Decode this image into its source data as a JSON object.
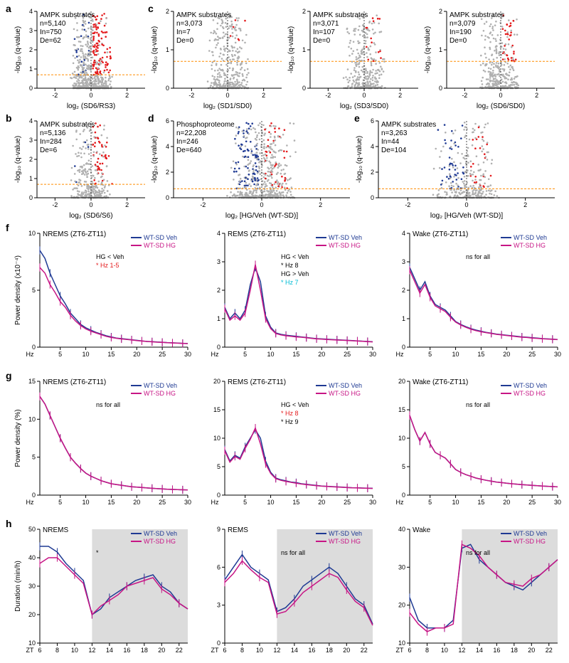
{
  "labels": {
    "a": "a",
    "b": "b",
    "c": "c",
    "d": "d",
    "e": "e",
    "f": "f",
    "g": "g",
    "h": "h"
  },
  "colors": {
    "gray": "#b0b0b0",
    "red": "#e41a1c",
    "blue": "#1f3a93",
    "black": "#000000",
    "magenta": "#c71585",
    "purple": "#9932cc",
    "threshold": "#ff8c00",
    "shade": "#dcdcdc"
  },
  "volcanoes": {
    "a": {
      "title": "AMPK substrates",
      "n": "n=5,140",
      "in": "In=750",
      "de": "De=62",
      "xlabel": "log₂ (SD6/RS3)",
      "ylabel": "-log₁₀ (q-value)",
      "xlim": [
        -3,
        3
      ],
      "ylim": [
        0,
        4
      ],
      "threshold_y": 0.7,
      "xticks": [
        -2,
        0,
        2
      ],
      "yticks": [
        0,
        1,
        2,
        3,
        4
      ]
    },
    "b": {
      "title": "AMPK substrates",
      "n": "n=5,136",
      "in": "In=284",
      "de": "De=6",
      "xlabel": "log₂ (SD6/S6)",
      "ylabel": "-log₁₀ (q-value)",
      "xlim": [
        -3,
        3
      ],
      "ylim": [
        0,
        4
      ],
      "threshold_y": 0.7,
      "xticks": [
        -2,
        0,
        2
      ],
      "yticks": [
        0,
        1,
        2,
        3,
        4
      ]
    },
    "c1": {
      "title": "AMPK substrates",
      "n": "n=3,073",
      "in": "In=7",
      "de": "De=0",
      "xlabel": "log₂ (SD1/SD0)",
      "ylabel": "-log₁₀ (q-value)",
      "xlim": [
        -3,
        3
      ],
      "ylim": [
        0,
        2
      ],
      "threshold_y": 0.7,
      "xticks": [
        -2,
        0,
        2
      ],
      "yticks": [
        0,
        1,
        2
      ]
    },
    "c2": {
      "title": "AMPK substrates",
      "n": "n=3,071",
      "in": "In=107",
      "de": "De=0",
      "xlabel": "log₂ (SD3/SD0)",
      "ylabel": "-log₁₀ (q-value)",
      "xlim": [
        -3,
        3
      ],
      "ylim": [
        0,
        2
      ],
      "threshold_y": 0.7,
      "xticks": [
        -2,
        0,
        2
      ],
      "yticks": [
        0,
        1,
        2
      ]
    },
    "c3": {
      "title": "AMPK substrates",
      "n": "n=3,079",
      "in": "In=190",
      "de": "De=0",
      "xlabel": "log₂ (SD6/SD0)",
      "ylabel": "-log₁₀ (q-value)",
      "xlim": [
        -3,
        3
      ],
      "ylim": [
        0,
        2
      ],
      "threshold_y": 0.7,
      "xticks": [
        -2,
        0,
        2
      ],
      "yticks": [
        0,
        1,
        2
      ]
    },
    "d": {
      "title": "Phosphoproteome",
      "n": "n=22,208",
      "in": "In=246",
      "de": "De=640",
      "xlabel": "log₂ [HG/Veh (WT-SD)]",
      "ylabel": "-log₁₀ (q-value)",
      "xlim": [
        -3,
        3
      ],
      "ylim": [
        0,
        6
      ],
      "threshold_y": 0.7,
      "xticks": [
        -2,
        0,
        2
      ],
      "yticks": [
        0,
        2,
        4,
        6
      ]
    },
    "e": {
      "title": "AMPK substrates",
      "n": "n=3,263",
      "in": "In=44",
      "de": "De=104",
      "xlabel": "log₂ [HG/Veh (WT-SD)]",
      "ylabel": "-log₁₀ (q-value)",
      "xlim": [
        -3,
        3
      ],
      "ylim": [
        0,
        6
      ],
      "threshold_y": 0.7,
      "xticks": [
        -2,
        0,
        2
      ],
      "yticks": [
        0,
        2,
        4,
        6
      ]
    }
  },
  "linecharts": {
    "f": {
      "ylabel": "Power density (x10⁻⁴)",
      "panels": [
        {
          "title": "NREMS (ZT6-ZT11)",
          "ylim": [
            0,
            10
          ],
          "yticks": [
            0,
            5,
            10
          ],
          "legend": [
            "WT-SD Veh",
            "WT-SD HG"
          ],
          "annot": [
            {
              "t": "HG < Veh",
              "c": "#000"
            },
            {
              "t": "* Hz 1-5",
              "c": "#e41a1c"
            }
          ]
        },
        {
          "title": "REMS (ZT6-ZT11)",
          "ylim": [
            0,
            4
          ],
          "yticks": [
            0,
            1,
            2,
            3,
            4
          ],
          "legend": [
            "WT-SD Veh",
            "WT-SD HG"
          ],
          "annot": [
            {
              "t": "HG < Veh",
              "c": "#000"
            },
            {
              "t": "* Hz 8",
              "c": "#000"
            },
            {
              "t": "HG > Veh",
              "c": "#000"
            },
            {
              "t": "* Hz 7",
              "c": "#00bcd4"
            }
          ]
        },
        {
          "title": "Wake (ZT6-ZT11)",
          "ylim": [
            0,
            4
          ],
          "yticks": [
            0,
            1,
            2,
            3,
            4
          ],
          "legend": [
            "WT-SD Veh",
            "WT-SD HG"
          ],
          "annot": [
            {
              "t": "ns for all",
              "c": "#000"
            }
          ]
        }
      ],
      "xlim": [
        1,
        30
      ],
      "xticks": [
        5,
        10,
        15,
        20,
        25,
        30
      ],
      "xlabel": "Hz"
    },
    "g": {
      "ylabel": "Power density (%)",
      "panels": [
        {
          "title": "NREMS (ZT6-ZT11)",
          "ylim": [
            0,
            15
          ],
          "yticks": [
            0,
            5,
            10,
            15
          ],
          "legend": [
            "WT-SD Veh",
            "WT-SD HG"
          ],
          "annot": [
            {
              "t": "ns for all",
              "c": "#000"
            }
          ]
        },
        {
          "title": "REMS (ZT6-ZT11)",
          "ylim": [
            0,
            20
          ],
          "yticks": [
            0,
            5,
            10,
            15,
            20
          ],
          "legend": [
            "WT-SD Veh",
            "WT-SD HG"
          ],
          "annot": [
            {
              "t": "HG < Veh",
              "c": "#000"
            },
            {
              "t": "* Hz 8",
              "c": "#e41a1c"
            },
            {
              "t": "* Hz 9",
              "c": "#000"
            }
          ]
        },
        {
          "title": "Wake (ZT6-ZT11)",
          "ylim": [
            0,
            20
          ],
          "yticks": [
            0,
            5,
            10,
            15,
            20
          ],
          "legend": [
            "WT-SD Veh",
            "WT-SD HG"
          ],
          "annot": [
            {
              "t": "ns for all",
              "c": "#000"
            }
          ]
        }
      ],
      "xlim": [
        1,
        30
      ],
      "xticks": [
        5,
        10,
        15,
        20,
        25,
        30
      ],
      "xlabel": "Hz"
    },
    "h": {
      "ylabel": "Duration (min/h)",
      "panels": [
        {
          "title": "NREMS",
          "ylim": [
            10,
            50
          ],
          "yticks": [
            10,
            20,
            30,
            40,
            50
          ],
          "legend": [
            "WT-SD Veh",
            "WT-SD HG"
          ],
          "annot": [
            {
              "t": "*",
              "c": "#000"
            }
          ],
          "shade": [
            12,
            23
          ]
        },
        {
          "title": "REMS",
          "ylim": [
            0,
            9
          ],
          "yticks": [
            0,
            3,
            6,
            9
          ],
          "legend": [
            "WT-SD Veh",
            "WT-SD HG"
          ],
          "annot": [
            {
              "t": "ns for all",
              "c": "#000"
            }
          ],
          "shade": [
            12,
            23
          ]
        },
        {
          "title": "Wake",
          "ylim": [
            10,
            40
          ],
          "yticks": [
            10,
            20,
            30,
            40
          ],
          "legend": [
            "WT-SD Veh",
            "WT-SD HG"
          ],
          "annot": [
            {
              "t": "ns for all",
              "c": "#000"
            }
          ],
          "shade": [
            12,
            23
          ]
        }
      ],
      "xlim": [
        6,
        23
      ],
      "xticks": [
        6,
        8,
        10,
        12,
        14,
        16,
        18,
        20,
        22
      ],
      "xlabel": "ZT"
    }
  },
  "line_data": {
    "f_nrems_veh": [
      8.5,
      7.8,
      6.5,
      5.5,
      4.5,
      3.8,
      3.0,
      2.5,
      2.0,
      1.7,
      1.5,
      1.3,
      1.15,
      1.0,
      0.9,
      0.8,
      0.75,
      0.7,
      0.65,
      0.6,
      0.55,
      0.5,
      0.48,
      0.45,
      0.43,
      0.4,
      0.38,
      0.36,
      0.34,
      0.32
    ],
    "f_nrems_hg": [
      7.0,
      6.5,
      5.5,
      4.8,
      4.0,
      3.5,
      2.8,
      2.3,
      1.9,
      1.6,
      1.4,
      1.25,
      1.1,
      0.95,
      0.85,
      0.78,
      0.72,
      0.68,
      0.63,
      0.58,
      0.54,
      0.5,
      0.47,
      0.44,
      0.42,
      0.39,
      0.37,
      0.35,
      0.33,
      0.31
    ],
    "f_rems_veh": [
      1.4,
      1.0,
      1.2,
      1.0,
      1.3,
      2.2,
      2.8,
      2.3,
      1.1,
      0.7,
      0.5,
      0.45,
      0.42,
      0.4,
      0.38,
      0.36,
      0.34,
      0.32,
      0.3,
      0.29,
      0.28,
      0.27,
      0.26,
      0.25,
      0.24,
      0.23,
      0.22,
      0.21,
      0.2,
      0.19
    ],
    "f_rems_hg": [
      1.35,
      0.95,
      1.1,
      0.95,
      1.2,
      2.0,
      2.9,
      2.0,
      1.0,
      0.65,
      0.48,
      0.43,
      0.4,
      0.38,
      0.36,
      0.35,
      0.33,
      0.31,
      0.29,
      0.28,
      0.27,
      0.26,
      0.25,
      0.245,
      0.235,
      0.225,
      0.215,
      0.205,
      0.195,
      0.185
    ],
    "f_wake_veh": [
      2.8,
      2.4,
      2.0,
      2.3,
      1.8,
      1.5,
      1.4,
      1.3,
      1.1,
      0.9,
      0.8,
      0.72,
      0.65,
      0.6,
      0.56,
      0.52,
      0.49,
      0.46,
      0.44,
      0.42,
      0.4,
      0.38,
      0.36,
      0.35,
      0.33,
      0.32,
      0.3,
      0.29,
      0.28,
      0.27
    ],
    "f_wake_hg": [
      2.7,
      2.3,
      1.9,
      2.2,
      1.75,
      1.45,
      1.35,
      1.25,
      1.05,
      0.88,
      0.78,
      0.7,
      0.63,
      0.58,
      0.54,
      0.51,
      0.48,
      0.45,
      0.43,
      0.41,
      0.39,
      0.37,
      0.35,
      0.34,
      0.32,
      0.31,
      0.295,
      0.285,
      0.275,
      0.265
    ],
    "g_nrems": [
      13,
      12,
      10.5,
      9,
      7.5,
      6.2,
      5,
      4.2,
      3.5,
      2.9,
      2.5,
      2.2,
      1.9,
      1.7,
      1.5,
      1.4,
      1.3,
      1.2,
      1.1,
      1.05,
      1.0,
      0.95,
      0.9,
      0.85,
      0.82,
      0.78,
      0.75,
      0.72,
      0.7,
      0.68
    ],
    "g_rems_veh": [
      8,
      6,
      7,
      6.5,
      8.5,
      10,
      11.5,
      10,
      6,
      4,
      3,
      2.7,
      2.5,
      2.3,
      2.2,
      2.0,
      1.9,
      1.8,
      1.7,
      1.6,
      1.55,
      1.5,
      1.45,
      1.4,
      1.35,
      1.3,
      1.28,
      1.25,
      1.22,
      1.2
    ],
    "g_rems_hg": [
      7.8,
      5.8,
      6.8,
      6.3,
      8.2,
      9.8,
      11.8,
      9,
      5.5,
      3.8,
      2.9,
      2.6,
      2.4,
      2.25,
      2.1,
      1.95,
      1.85,
      1.75,
      1.65,
      1.58,
      1.52,
      1.48,
      1.43,
      1.38,
      1.33,
      1.28,
      1.26,
      1.23,
      1.2,
      1.18
    ],
    "g_wake": [
      14,
      11.5,
      9.5,
      11,
      9,
      7.5,
      7,
      6.5,
      5.5,
      4.5,
      4,
      3.6,
      3.3,
      3.0,
      2.8,
      2.6,
      2.45,
      2.3,
      2.2,
      2.1,
      2.0,
      1.92,
      1.85,
      1.78,
      1.72,
      1.66,
      1.6,
      1.55,
      1.5,
      1.45
    ],
    "h_nrems_veh_x": [
      6,
      7,
      8,
      9,
      10,
      11,
      12,
      13,
      14,
      15,
      16,
      17,
      18,
      19,
      20,
      21,
      22,
      23
    ],
    "h_nrems_veh": [
      44,
      44,
      42,
      38,
      35,
      32,
      20,
      22,
      26,
      28,
      30,
      32,
      33,
      34,
      30,
      28,
      24,
      22
    ],
    "h_nrems_hg": [
      38,
      40,
      40,
      37,
      34,
      31,
      20,
      23,
      25,
      27,
      30,
      31,
      32,
      33,
      29,
      27,
      24,
      22
    ],
    "h_rems_veh": [
      5,
      6,
      7,
      6,
      5.5,
      5,
      2.5,
      2.8,
      3.5,
      4.5,
      5,
      5.5,
      6,
      5.5,
      4.5,
      3.5,
      3,
      1.5
    ],
    "h_rems_hg": [
      4.8,
      5.5,
      6.5,
      5.8,
      5.2,
      4.8,
      2.3,
      2.5,
      3.2,
      4.0,
      4.5,
      5.0,
      5.5,
      5.2,
      4.2,
      3.3,
      2.8,
      1.4
    ],
    "h_wake_veh": [
      22,
      16,
      14,
      14,
      14,
      16,
      35,
      36,
      32,
      30,
      28,
      26,
      25,
      24,
      26,
      28,
      30,
      32
    ],
    "h_wake_hg": [
      18,
      15,
      13,
      14,
      14,
      15,
      36,
      35,
      33,
      30,
      28,
      26,
      25.5,
      25,
      27,
      28,
      30,
      32
    ]
  }
}
